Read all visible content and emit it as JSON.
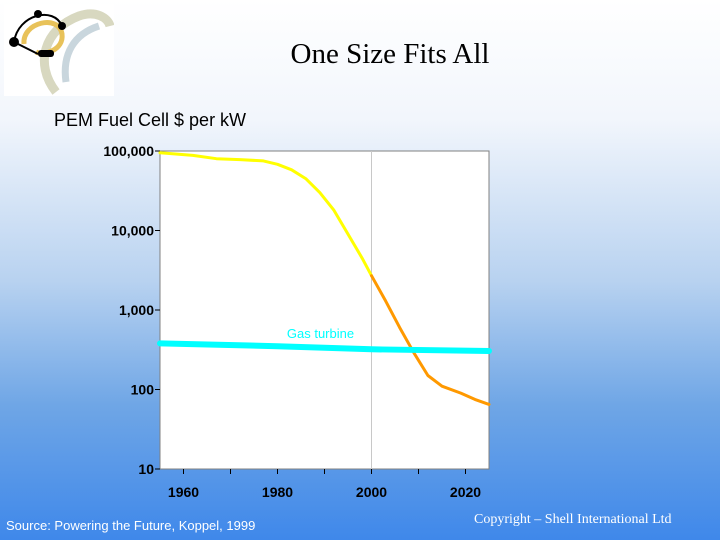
{
  "slide": {
    "title": "One Size Fits All",
    "source": "Source: Powering the Future, Koppel, 1999",
    "copyright": "Copyright – Shell International Ltd"
  },
  "colors": {
    "fuel_cell_history": "#ffff00",
    "fuel_cell_projection": "#ff9900",
    "gas_turbine": "#00ffff",
    "plot_bg": "#ffffff",
    "axis": "#808080"
  },
  "chart_data": {
    "type": "line",
    "title": "PEM Fuel Cell $ per kW",
    "xlabel": "",
    "ylabel": "",
    "yscale": "log",
    "xlim": [
      1955,
      2025
    ],
    "ylim": [
      10,
      100000
    ],
    "x_ticks": [
      1960,
      1980,
      2000,
      2020
    ],
    "y_ticks": [
      10,
      100,
      1000,
      10000,
      100000
    ],
    "y_tick_labels": [
      "10",
      "100",
      "1,000",
      "10,000",
      "100,000"
    ],
    "grid": false,
    "reference_line_x": 2000,
    "series": [
      {
        "segment": "fuel-cell-history",
        "color": "#ffff00",
        "x": [
          1955,
          1962,
          1967,
          1972,
          1977,
          1980,
          1983,
          1986,
          1989,
          1992,
          1995,
          1998,
          2000
        ],
        "y": [
          95000,
          88000,
          80000,
          78000,
          75000,
          68000,
          58000,
          45000,
          30000,
          18000,
          9000,
          4500,
          2700
        ]
      },
      {
        "segment": "fuel-cell-projection",
        "color": "#ff9900",
        "x": [
          2000,
          2003,
          2006,
          2009,
          2012,
          2015,
          2019,
          2022,
          2025
        ],
        "y": [
          2700,
          1300,
          600,
          290,
          150,
          110,
          90,
          75,
          65
        ]
      },
      {
        "name": "Gas turbine",
        "color": "#00ffff",
        "x": [
          1955,
          1980,
          2000,
          2025
        ],
        "y": [
          380,
          350,
          320,
          305
        ]
      }
    ],
    "annotations": [
      {
        "text": "Gas turbine",
        "x": 1982,
        "y": 500,
        "color": "#00ffff"
      }
    ]
  }
}
